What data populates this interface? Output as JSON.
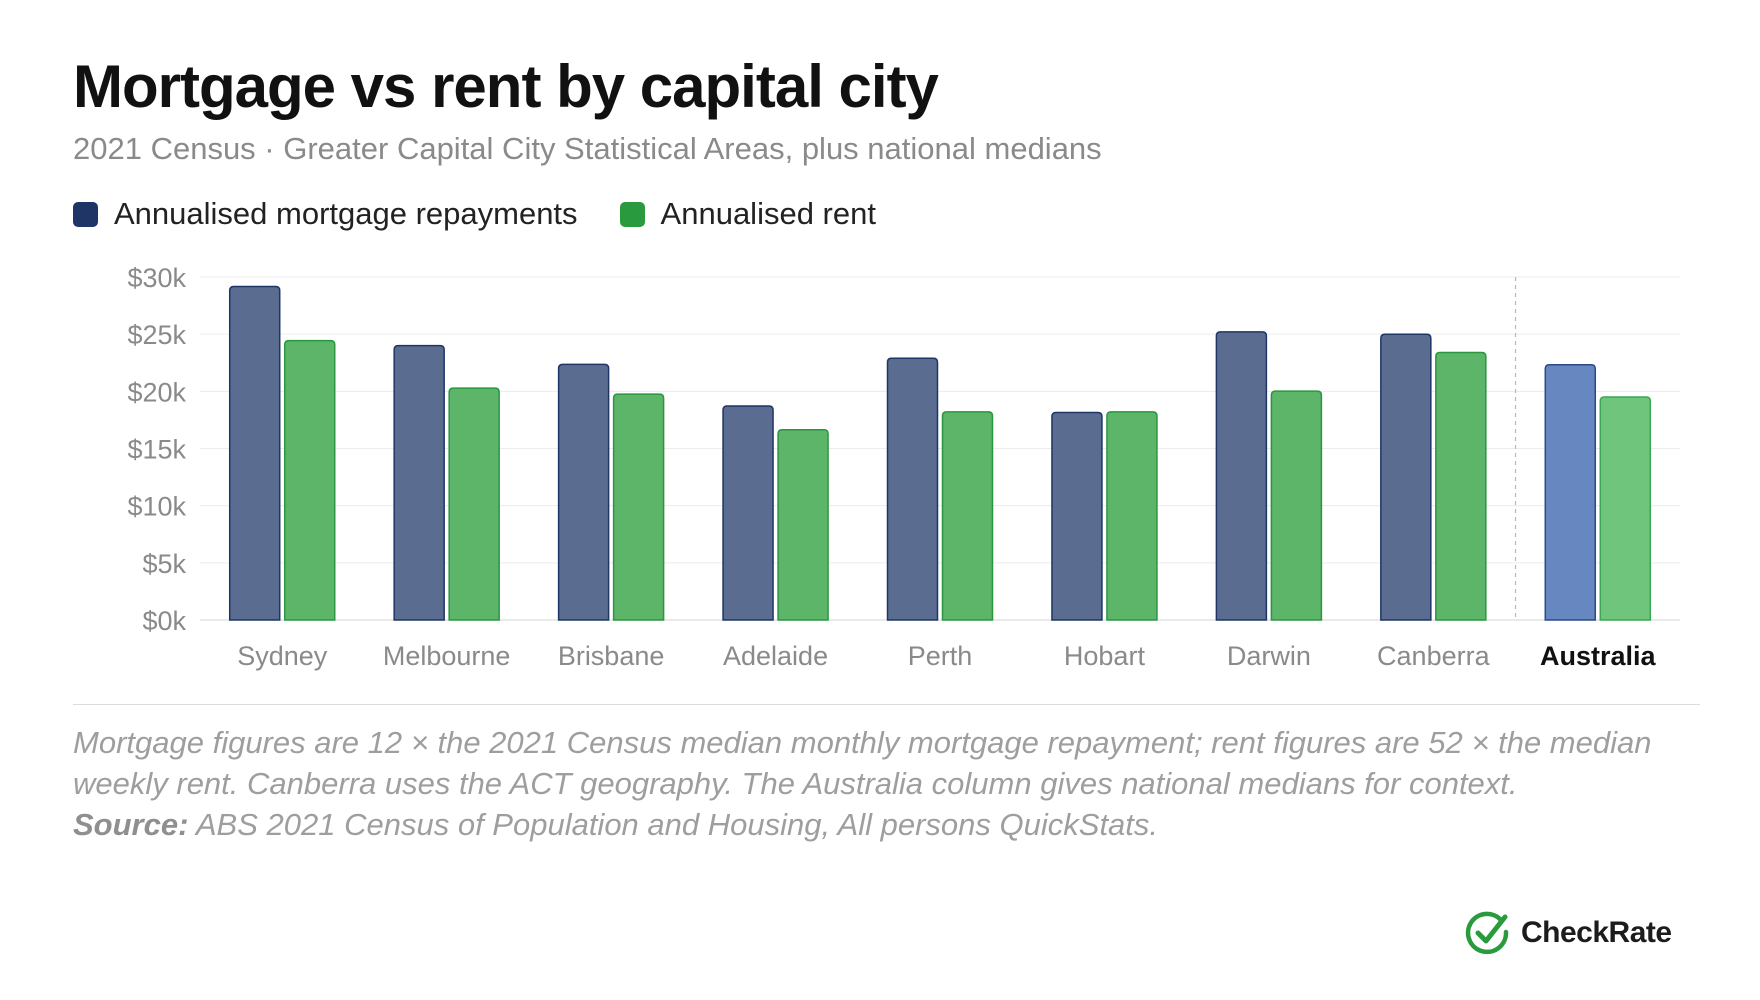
{
  "title": "Mortgage vs rent by capital city",
  "subtitle": "2021 Census · Greater Capital City Statistical Areas, plus national medians",
  "legend": {
    "mortgage_label": "Annualised mortgage repayments",
    "rent_label": "Annualised rent"
  },
  "colors": {
    "mortgage": "#5a6d91",
    "mortgage_stroke": "#1f3566",
    "rent": "#5db56a",
    "rent_stroke": "#2a9640",
    "mortgage_highlight": "#6787c1",
    "mortgage_highlight_stroke": "#2c4a86",
    "rent_highlight": "#6fc57c",
    "rent_highlight_stroke": "#3aa752",
    "legend_mortgage": "#1f3566",
    "legend_rent": "#2a9a3e"
  },
  "chart_data": {
    "type": "bar",
    "categories": [
      "Sydney",
      "Melbourne",
      "Brisbane",
      "Adelaide",
      "Perth",
      "Hobart",
      "Darwin",
      "Canberra",
      "Australia"
    ],
    "highlight_category": "Australia",
    "series": [
      {
        "name": "Annualised mortgage repayments",
        "values": [
          29172,
          24000,
          22356,
          18720,
          22896,
          18144,
          25200,
          24996,
          22320
        ]
      },
      {
        "name": "Annualised rent",
        "values": [
          24440,
          20280,
          19760,
          16640,
          18200,
          18200,
          20020,
          23400,
          19500
        ]
      }
    ],
    "y_ticks": [
      0,
      5000,
      10000,
      15000,
      20000,
      25000,
      30000
    ],
    "y_tick_labels": [
      "$0k",
      "$5k",
      "$10k",
      "$15k",
      "$20k",
      "$25k",
      "$30k"
    ],
    "ylim": [
      0,
      30000
    ],
    "grid": true,
    "legend_position": "top-left",
    "separator_before": "Australia"
  },
  "notes": {
    "text": "Mortgage figures are 12 × the 2021 Census median monthly mortgage repayment; rent figures are 52 × the median weekly rent. Canberra uses the ACT geography. The Australia column gives national medians for context.",
    "source_label": "Source:",
    "source_text": " ABS 2021 Census of Population and Housing, All persons QuickStats."
  },
  "brand": {
    "name": "CheckRate",
    "icon": "checkmark-circle-icon"
  }
}
